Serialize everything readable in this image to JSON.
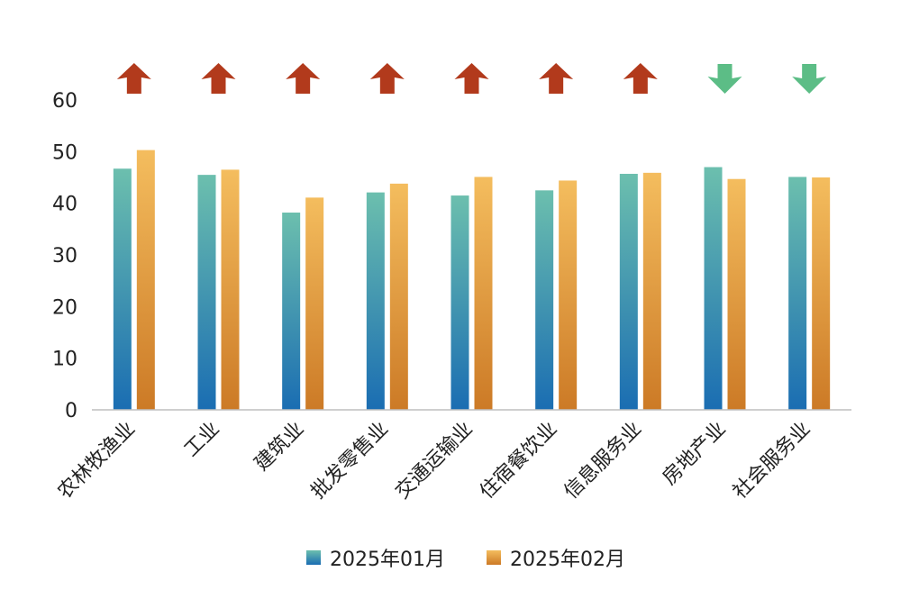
{
  "chart_data": {
    "type": "bar",
    "title": "",
    "xlabel": "",
    "ylabel": "",
    "ylim": [
      0,
      60
    ],
    "yticks": [
      0,
      10,
      20,
      30,
      40,
      50,
      60
    ],
    "categories": [
      "农林牧渔业",
      "工业",
      "建筑业",
      "批发零售业",
      "交通运输业",
      "住宿餐饮业",
      "信息服务业",
      "房地产业",
      "社会服务业"
    ],
    "series": [
      {
        "name": "2025年01月",
        "values": [
          46.7,
          45.5,
          38.2,
          42.1,
          41.5,
          42.5,
          45.7,
          47.0,
          45.1
        ],
        "color_top": "#6cbfae",
        "color_bottom": "#1a6db2"
      },
      {
        "name": "2025年02月",
        "values": [
          50.3,
          46.5,
          41.1,
          43.8,
          45.1,
          44.4,
          45.9,
          44.7,
          45.0
        ],
        "color_top": "#f4bd5e",
        "color_bottom": "#cc7a26"
      }
    ],
    "trend": [
      "up",
      "up",
      "up",
      "up",
      "up",
      "up",
      "up",
      "down",
      "down"
    ],
    "trend_colors": {
      "up": "#b23a1c",
      "down": "#5cbd86"
    },
    "legend_position": "bottom",
    "grid": false
  }
}
